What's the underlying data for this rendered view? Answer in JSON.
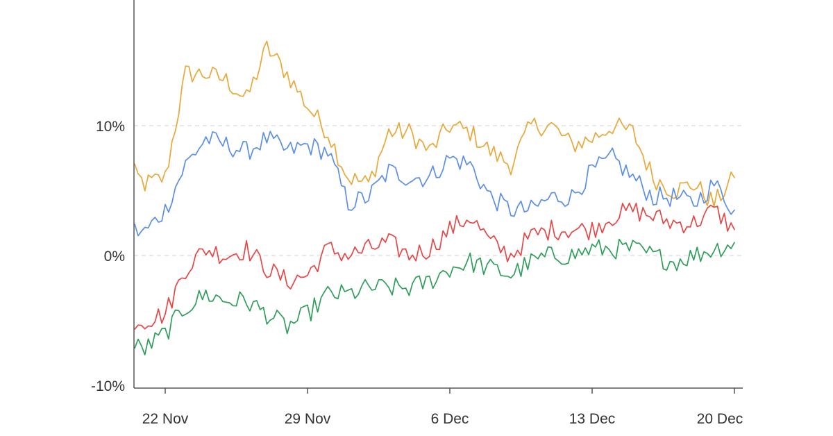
{
  "chart_data": {
    "type": "line",
    "title": "",
    "xlabel": "",
    "ylabel": "",
    "x_ticks": [
      "22 Nov",
      "29 Nov",
      "6 Dec",
      "13 Dec",
      "20 Dec"
    ],
    "y_ticks": [
      "10%",
      "0%",
      "-10%"
    ],
    "y_tick_values": [
      10,
      0,
      -10
    ],
    "ylim": [
      -10,
      20
    ],
    "xlim": [
      "2021-11-20",
      "2021-12-20"
    ],
    "grid": "horizontal dashed at y ticks",
    "legend": "none",
    "x": [
      "2021-11-20",
      "2021-11-21",
      "2021-11-22",
      "2021-11-23",
      "2021-11-24",
      "2021-11-25",
      "2021-11-26",
      "2021-11-27",
      "2021-11-28",
      "2021-11-29",
      "2021-11-30",
      "2021-12-01",
      "2021-12-02",
      "2021-12-03",
      "2021-12-04",
      "2021-12-05",
      "2021-12-06",
      "2021-12-07",
      "2021-12-08",
      "2021-12-09",
      "2021-12-10",
      "2021-12-11",
      "2021-12-12",
      "2021-12-13",
      "2021-12-14",
      "2021-12-15",
      "2021-12-16",
      "2021-12-17",
      "2021-12-18",
      "2021-12-19",
      "2021-12-20"
    ],
    "series": [
      {
        "color": "#e8a838",
        "values": [
          7.0,
          5.5,
          6.0,
          14.0,
          14.0,
          13.5,
          12.0,
          16.0,
          14.0,
          11.5,
          9.5,
          6.0,
          5.5,
          9.5,
          9.5,
          8.0,
          10.0,
          9.5,
          8.0,
          7.0,
          10.0,
          10.0,
          8.5,
          9.0,
          10.0,
          9.5,
          6.0,
          5.0,
          5.5,
          4.0,
          6.0
        ]
      },
      {
        "color": "#5b8ee6",
        "values": [
          2.0,
          1.8,
          3.5,
          7.0,
          9.0,
          8.5,
          8.0,
          9.0,
          8.0,
          8.5,
          8.0,
          4.0,
          4.5,
          6.5,
          6.0,
          6.0,
          7.5,
          7.0,
          4.5,
          3.5,
          3.5,
          4.5,
          4.5,
          6.5,
          7.5,
          6.0,
          4.5,
          4.5,
          4.0,
          5.5,
          3.5
        ]
      },
      {
        "color": "#e84545",
        "values": [
          -5.0,
          -5.0,
          -4.5,
          -1.0,
          0.5,
          0.0,
          0.5,
          -1.0,
          -2.0,
          -1.5,
          0.5,
          0.0,
          0.5,
          1.0,
          0.0,
          0.5,
          2.0,
          3.0,
          1.0,
          0.0,
          1.5,
          2.0,
          2.0,
          2.0,
          3.0,
          3.5,
          3.0,
          2.5,
          2.5,
          3.5,
          2.0
        ]
      },
      {
        "color": "#2e9e5b",
        "values": [
          -6.8,
          -7.2,
          -6.0,
          -4.0,
          -3.0,
          -3.5,
          -3.5,
          -4.5,
          -5.5,
          -4.5,
          -3.0,
          -3.0,
          -2.5,
          -2.5,
          -2.5,
          -2.0,
          -1.0,
          -0.5,
          -1.0,
          -1.5,
          -0.5,
          0.0,
          0.0,
          0.5,
          0.5,
          0.5,
          0.0,
          -0.5,
          0.0,
          0.5,
          1.0
        ]
      }
    ]
  }
}
